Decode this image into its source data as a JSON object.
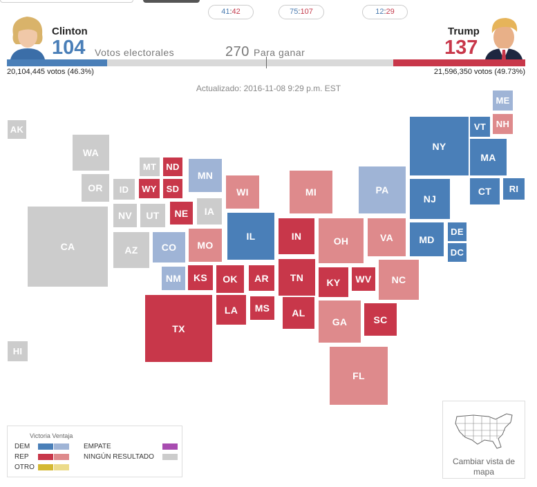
{
  "pills": [
    {
      "dem": "41",
      "rep": "42"
    },
    {
      "dem": "75",
      "rep": "107"
    },
    {
      "dem": "12",
      "rep": "29"
    }
  ],
  "clinton": {
    "name": "Clinton",
    "electoral": "104",
    "popular": "20,104,445 votos (46.3%)",
    "color": "#4a7fb8",
    "bar_fraction": 0.193
  },
  "trump": {
    "name": "Trump",
    "electoral": "137",
    "popular": "21,596,350 votos (49.73%)",
    "color": "#c8374a",
    "bar_fraction": 0.254
  },
  "votes_label": "Votos electorales",
  "to_win": {
    "number": "270",
    "label": "Para ganar"
  },
  "updated": "Actualizado: 2016-11-08 9:29 p.m. EST",
  "colors": {
    "dem_win": "#4a7fb8",
    "dem_lead": "#9fb4d6",
    "rep_win": "#c8374a",
    "rep_lead": "#de8a8c",
    "none": "#cccccc",
    "tie": "#a84cb0",
    "other_win": "#d4b832",
    "other_lead": "#ecdb8a"
  },
  "states": [
    {
      "abbr": "AK",
      "status": "none"
    },
    {
      "abbr": "HI",
      "status": "none"
    },
    {
      "abbr": "WA",
      "status": "none"
    },
    {
      "abbr": "OR",
      "status": "none"
    },
    {
      "abbr": "CA",
      "status": "none"
    },
    {
      "abbr": "MT",
      "status": "none"
    },
    {
      "abbr": "ID",
      "status": "none"
    },
    {
      "abbr": "NV",
      "status": "none"
    },
    {
      "abbr": "UT",
      "status": "none"
    },
    {
      "abbr": "AZ",
      "status": "none"
    },
    {
      "abbr": "ND",
      "status": "rep_win"
    },
    {
      "abbr": "WY",
      "status": "rep_win"
    },
    {
      "abbr": "SD",
      "status": "rep_win"
    },
    {
      "abbr": "NE",
      "status": "rep_win"
    },
    {
      "abbr": "CO",
      "status": "dem_lead"
    },
    {
      "abbr": "NM",
      "status": "dem_lead"
    },
    {
      "abbr": "KS",
      "status": "rep_win"
    },
    {
      "abbr": "OK",
      "status": "rep_win"
    },
    {
      "abbr": "TX",
      "status": "rep_win"
    },
    {
      "abbr": "MN",
      "status": "dem_lead"
    },
    {
      "abbr": "IA",
      "status": "none"
    },
    {
      "abbr": "MO",
      "status": "rep_lead"
    },
    {
      "abbr": "AR",
      "status": "rep_win"
    },
    {
      "abbr": "LA",
      "status": "rep_win"
    },
    {
      "abbr": "MS",
      "status": "rep_win"
    },
    {
      "abbr": "WI",
      "status": "rep_lead"
    },
    {
      "abbr": "IL",
      "status": "dem_win"
    },
    {
      "abbr": "MI",
      "status": "rep_lead"
    },
    {
      "abbr": "IN",
      "status": "rep_win"
    },
    {
      "abbr": "OH",
      "status": "rep_lead"
    },
    {
      "abbr": "KY",
      "status": "rep_win"
    },
    {
      "abbr": "TN",
      "status": "rep_win"
    },
    {
      "abbr": "AL",
      "status": "rep_win"
    },
    {
      "abbr": "WV",
      "status": "rep_win"
    },
    {
      "abbr": "VA",
      "status": "rep_lead"
    },
    {
      "abbr": "NC",
      "status": "rep_lead"
    },
    {
      "abbr": "GA",
      "status": "rep_lead"
    },
    {
      "abbr": "SC",
      "status": "rep_win"
    },
    {
      "abbr": "FL",
      "status": "rep_lead"
    },
    {
      "abbr": "PA",
      "status": "dem_lead"
    },
    {
      "abbr": "NY",
      "status": "dem_win"
    },
    {
      "abbr": "NJ",
      "status": "dem_win"
    },
    {
      "abbr": "MD",
      "status": "dem_win"
    },
    {
      "abbr": "DE",
      "status": "dem_win"
    },
    {
      "abbr": "DC",
      "status": "dem_win"
    },
    {
      "abbr": "VT",
      "status": "dem_win"
    },
    {
      "abbr": "NH",
      "status": "rep_lead"
    },
    {
      "abbr": "ME",
      "status": "dem_lead"
    },
    {
      "abbr": "MA",
      "status": "dem_win"
    },
    {
      "abbr": "CT",
      "status": "dem_win"
    },
    {
      "abbr": "RI",
      "status": "dem_win"
    }
  ],
  "legend": {
    "header": "Victoria Ventaja",
    "dem": "DEM",
    "rep": "REP",
    "other": "OTRO",
    "tie": "EMPATE",
    "none": "NINGÚN RESULTADO"
  },
  "map_view_button": "Cambiar vista de mapa"
}
